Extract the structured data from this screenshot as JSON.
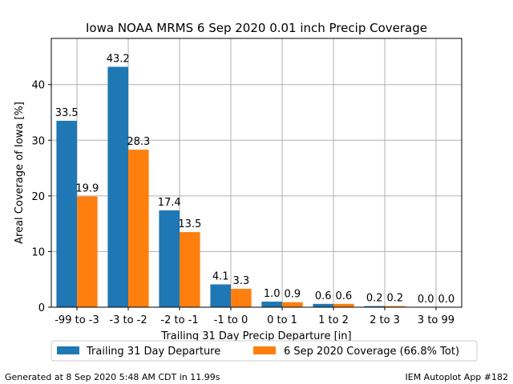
{
  "chart_data": {
    "type": "bar",
    "title": "Iowa NOAA MRMS 6 Sep 2020 0.01 inch Precip Coverage",
    "xlabel": "Trailing 31 Day Precip Departure [in]",
    "ylabel": "Areal Coverage of Iowa [%]",
    "categories": [
      "-99 to -3",
      "-3 to -2",
      "-2 to -1",
      "-1 to 0",
      "0 to 1",
      "1 to 2",
      "2 to 3",
      "3 to 99"
    ],
    "series": [
      {
        "name": "Trailing 31 Day Departure",
        "color": "#1f77b4",
        "values": [
          33.5,
          43.2,
          17.4,
          4.1,
          1.0,
          0.6,
          0.2,
          0.0
        ],
        "labels": [
          "33.5",
          "43.2",
          "17.4",
          "4.1",
          "1.0",
          "0.6",
          "0.2",
          "0.0"
        ]
      },
      {
        "name": "6 Sep 2020 Coverage (66.8% Tot)",
        "color": "#ff7f0e",
        "values": [
          19.9,
          28.3,
          13.5,
          3.3,
          0.9,
          0.6,
          0.2,
          0.0
        ],
        "labels": [
          "19.9",
          "28.3",
          "13.5",
          "3.3",
          "0.9",
          "0.6",
          "0.2",
          "0.0"
        ]
      }
    ],
    "ylim": [
      0,
      48.3
    ],
    "yticks": [
      0,
      10,
      20,
      30,
      40
    ],
    "grid": true,
    "legend_position": "bottom-center"
  },
  "footer": {
    "left": "Generated at 8 Sep 2020 5:48 AM CDT in 11.99s",
    "right": "IEM Autoplot App #182"
  }
}
